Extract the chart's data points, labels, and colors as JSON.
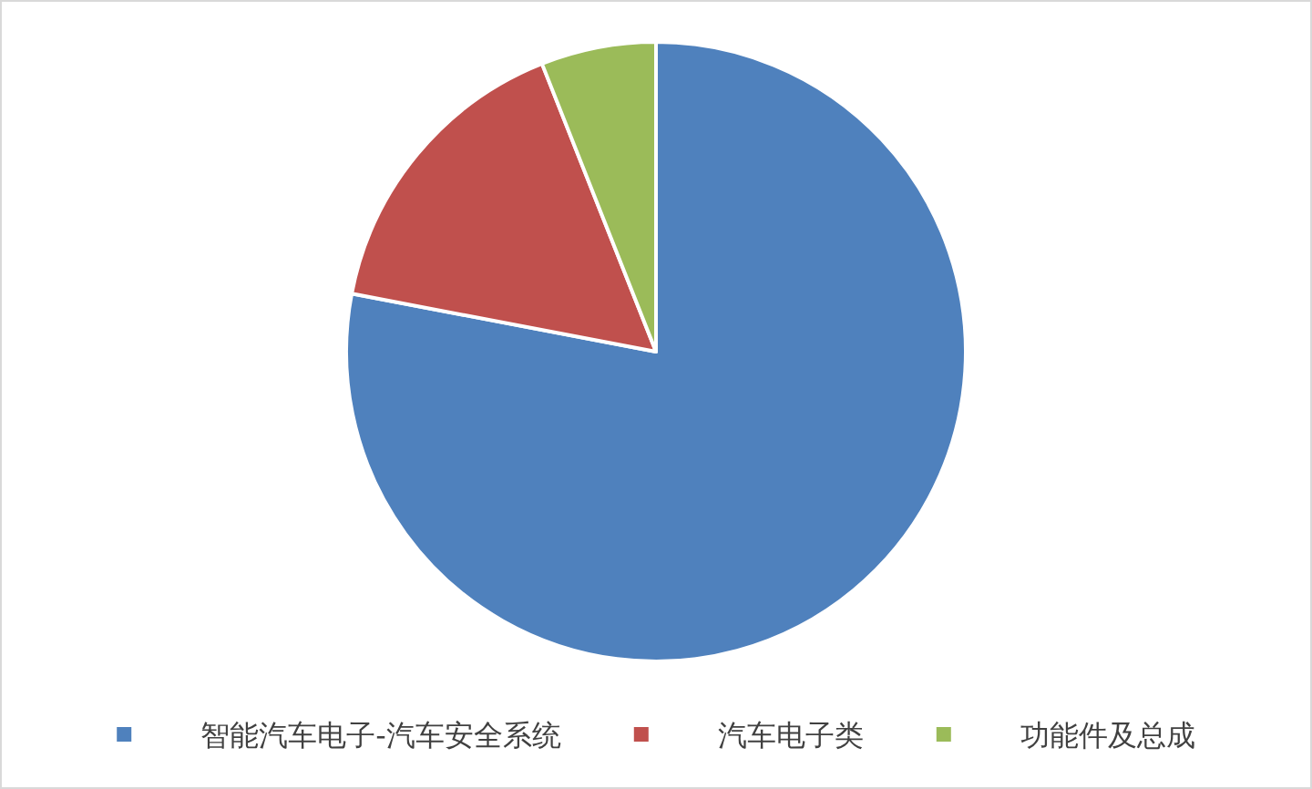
{
  "chart_data": {
    "type": "pie",
    "categories": [
      "智能汽车电子-汽车安全系统",
      "汽车电子类",
      "功能件及总成"
    ],
    "values": [
      78,
      16,
      6
    ],
    "colors": [
      "#4f81bd",
      "#c0504d",
      "#9bbb59"
    ],
    "legend": "bottom"
  }
}
